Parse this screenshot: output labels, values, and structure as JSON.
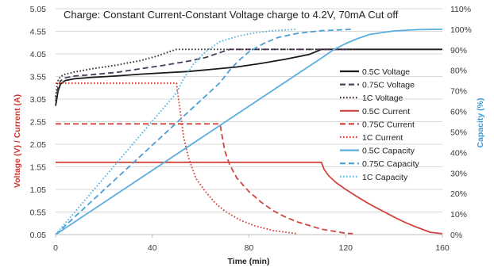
{
  "chart_data": {
    "type": "line",
    "title": "Charge: Constant Current-Constant Voltage charge to 4.2V, 70mA Cut off",
    "xlabel": "Time (min)",
    "ylabel_left": "Voltage (V) / Current (A)",
    "ylabel_right": "Capacity (%)",
    "xlim": [
      0,
      160
    ],
    "ylim_left": [
      0.05,
      5.05
    ],
    "ylim_right": [
      0,
      110
    ],
    "x_ticks": [
      "0",
      "40",
      "80",
      "120",
      "160"
    ],
    "x_tick_values": [
      0,
      40,
      80,
      120,
      160
    ],
    "y_left_ticks": [
      "0.05",
      "0.55",
      "1.05",
      "1.55",
      "2.05",
      "2.55",
      "3.05",
      "3.55",
      "4.05",
      "4.55",
      "5.05"
    ],
    "y_left_tick_values": [
      0.05,
      0.55,
      1.05,
      1.55,
      2.05,
      2.55,
      3.05,
      3.55,
      4.05,
      4.55,
      5.05
    ],
    "y_right_ticks": [
      "0%",
      "10%",
      "20%",
      "30%",
      "40%",
      "50%",
      "60%",
      "70%",
      "80%",
      "90%",
      "100%",
      "110%"
    ],
    "y_right_tick_values": [
      0,
      10,
      20,
      30,
      40,
      50,
      60,
      70,
      80,
      90,
      100,
      110
    ],
    "grid": "horizontal",
    "legend_position": "right",
    "colors": {
      "voltage": "#1a1a1a",
      "voltage_075": "#4a3e5a",
      "voltage_1": "#3a2a2a",
      "current": "#d0453f",
      "capacity": "#5aaee0",
      "capacity_075": "#4a9fd6",
      "capacity_1": "#55b6e6",
      "grid": "#d9d9d9",
      "axis_text": "#3a3a3a"
    },
    "series": [
      {
        "name": "0.5C Voltage",
        "axis": "left",
        "dash": "solid",
        "x": [
          0,
          0.5,
          1,
          2,
          4,
          8,
          15,
          25,
          35,
          45,
          55,
          65,
          75,
          85,
          95,
          105,
          110,
          115,
          120,
          130,
          140,
          150,
          160
        ],
        "y": [
          2.9,
          3.05,
          3.22,
          3.38,
          3.46,
          3.5,
          3.53,
          3.56,
          3.6,
          3.63,
          3.66,
          3.71,
          3.76,
          3.84,
          3.93,
          4.04,
          4.15,
          4.15,
          4.15,
          4.15,
          4.15,
          4.15,
          4.15
        ]
      },
      {
        "name": "0.75C Voltage",
        "axis": "left",
        "dash": "longdash",
        "x": [
          0,
          0.5,
          1,
          2,
          4,
          8,
          15,
          25,
          35,
          45,
          55,
          62,
          68,
          72,
          80,
          90,
          100,
          110,
          120,
          123
        ],
        "y": [
          3.0,
          3.15,
          3.3,
          3.45,
          3.52,
          3.56,
          3.59,
          3.64,
          3.72,
          3.8,
          3.89,
          3.97,
          4.08,
          4.15,
          4.15,
          4.15,
          4.15,
          4.15,
          4.15,
          4.15
        ]
      },
      {
        "name": "1C Voltage",
        "axis": "left",
        "dash": "dot",
        "x": [
          0,
          0.5,
          1,
          2,
          4,
          8,
          15,
          25,
          35,
          42,
          47,
          50,
          55,
          60,
          70,
          80,
          90,
          100,
          110,
          120,
          130,
          140,
          150,
          160
        ],
        "y": [
          3.1,
          3.3,
          3.45,
          3.55,
          3.6,
          3.65,
          3.72,
          3.8,
          3.9,
          4.0,
          4.1,
          4.15,
          4.15,
          4.15,
          4.15,
          4.15,
          4.15,
          4.15,
          4.15,
          4.15,
          4.15,
          4.15,
          4.15,
          4.15
        ]
      },
      {
        "name": "0.5C Current",
        "axis": "left",
        "dash": "solid",
        "x": [
          0,
          110,
          111,
          113,
          116,
          120,
          125,
          130,
          135,
          140,
          145,
          150,
          155,
          160
        ],
        "y": [
          1.65,
          1.65,
          1.5,
          1.35,
          1.2,
          1.05,
          0.88,
          0.72,
          0.58,
          0.44,
          0.31,
          0.2,
          0.1,
          0.07
        ]
      },
      {
        "name": "0.75C Current",
        "axis": "left",
        "dash": "longdash",
        "x": [
          0,
          68,
          69,
          70,
          72,
          75,
          80,
          85,
          90,
          95,
          100,
          110,
          120,
          123
        ],
        "y": [
          2.5,
          2.5,
          2.2,
          1.9,
          1.6,
          1.3,
          1.0,
          0.77,
          0.58,
          0.44,
          0.33,
          0.17,
          0.08,
          0.07
        ]
      },
      {
        "name": "1C Current",
        "axis": "left",
        "dash": "dot",
        "x": [
          0,
          50,
          51,
          52,
          53,
          55,
          58,
          62,
          66,
          70,
          76,
          82,
          90,
          100
        ],
        "y": [
          3.4,
          3.4,
          3.0,
          2.6,
          2.2,
          1.75,
          1.3,
          1.0,
          0.75,
          0.57,
          0.38,
          0.25,
          0.14,
          0.07
        ]
      },
      {
        "name": "0.5C Capacity",
        "axis": "right",
        "dash": "solid",
        "x": [
          0,
          110,
          115,
          120,
          125,
          130,
          140,
          150,
          160
        ],
        "y": [
          0,
          86,
          90,
          93,
          95.5,
          97.5,
          99.2,
          99.8,
          100
        ]
      },
      {
        "name": "0.75C Capacity",
        "axis": "right",
        "dash": "longdash",
        "x": [
          0,
          68,
          72,
          76,
          80,
          86,
          92,
          100,
          110,
          123
        ],
        "y": [
          0,
          74,
          80,
          85,
          89,
          93,
          96,
          98,
          99.3,
          100
        ]
      },
      {
        "name": "1C Capacity",
        "axis": "right",
        "dash": "dot",
        "x": [
          0,
          50,
          53,
          57,
          62,
          68,
          75,
          82,
          90,
          100
        ],
        "y": [
          0,
          69,
          76,
          83,
          89,
          94,
          96.5,
          98.2,
          99.3,
          100
        ]
      }
    ]
  }
}
